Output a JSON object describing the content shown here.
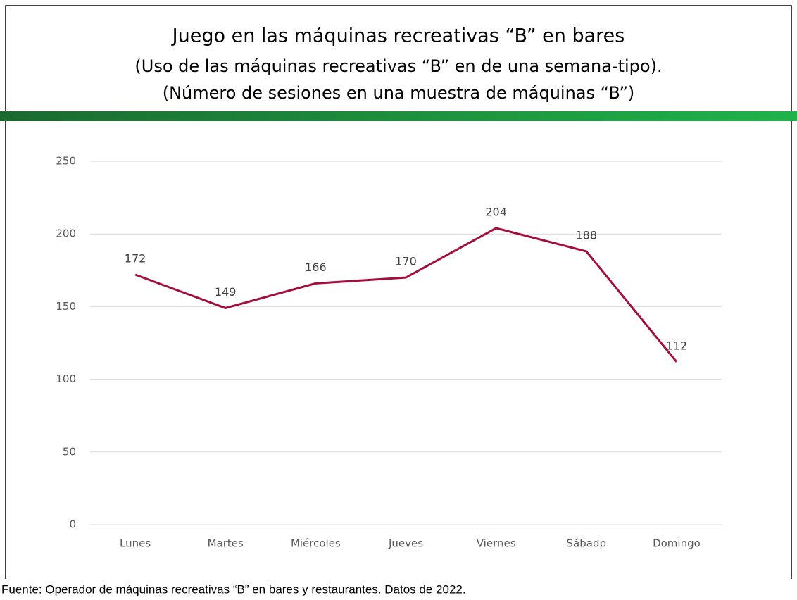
{
  "chart_data": {
    "type": "line",
    "title": "Juego en las máquinas recreativas “B” en bares",
    "subtitle": [
      "(Uso de las máquinas recreativas “B” en de una semana-tipo).",
      "(Número de sesiones en una muestra de máquinas “B”)"
    ],
    "categories": [
      "Lunes",
      "Martes",
      "Miércoles",
      "Jueves",
      "Viernes",
      "Sábadp",
      "Domingo"
    ],
    "values": [
      172,
      149,
      166,
      170,
      204,
      188,
      112
    ],
    "color": "#a50d3c",
    "ylim": [
      0,
      250
    ],
    "yticks": [
      0,
      50,
      100,
      150,
      200,
      250
    ],
    "grid": true,
    "source": "Fuente: Operador de máquinas recreativas “B” en bares y restaurantes. Datos de 2022."
  }
}
